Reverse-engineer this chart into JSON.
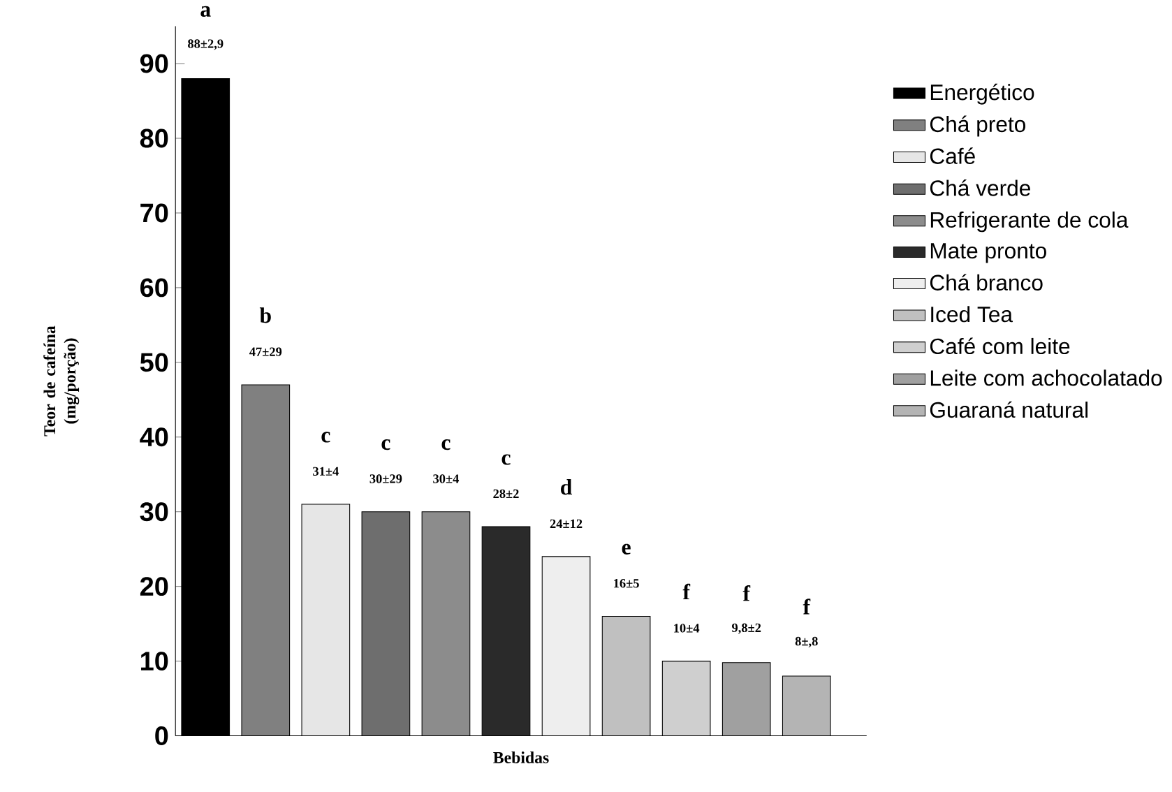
{
  "chart_data": {
    "type": "bar",
    "xlabel": "Bebidas",
    "ylabel": "Teor de cafeína (mg/porção)",
    "categories": [
      null,
      null,
      null,
      null,
      null,
      null,
      null,
      null,
      null,
      null,
      null
    ],
    "ylim": [
      0,
      95
    ],
    "yticks": [
      0,
      10,
      20,
      30,
      40,
      50,
      60,
      70,
      80,
      90
    ],
    "legend": "right",
    "series": [
      {
        "name": "Energético",
        "color": "#000000",
        "values": [
          88,
          null,
          null,
          null,
          null,
          null,
          null,
          null,
          null,
          null,
          null
        ],
        "value_labels": [
          "88±2,9",
          null,
          null,
          null,
          null,
          null,
          null,
          null,
          null,
          null,
          null
        ]
      },
      {
        "name": "Chá preto",
        "color": "#808080",
        "values": [
          null,
          47,
          null,
          null,
          null,
          null,
          null,
          null,
          null,
          null,
          null
        ],
        "value_labels": [
          null,
          "47±29",
          null,
          null,
          null,
          null,
          null,
          null,
          null,
          null,
          null
        ]
      },
      {
        "name": "Café",
        "color": "#e6e6e6",
        "values": [
          null,
          null,
          31,
          null,
          null,
          null,
          null,
          null,
          null,
          null,
          null
        ],
        "value_labels": [
          null,
          null,
          "31±4",
          null,
          null,
          null,
          null,
          null,
          null,
          null,
          null
        ]
      },
      {
        "name": "Chá verde",
        "color": "#6e6e6e",
        "values": [
          null,
          null,
          null,
          30,
          null,
          null,
          null,
          null,
          null,
          null,
          null
        ],
        "value_labels": [
          null,
          null,
          null,
          "30±29",
          null,
          null,
          null,
          null,
          null,
          null,
          null
        ]
      },
      {
        "name": "Refrigerante de cola",
        "color": "#8c8c8c",
        "values": [
          null,
          null,
          null,
          null,
          30,
          null,
          null,
          null,
          null,
          null,
          null
        ],
        "value_labels": [
          null,
          null,
          null,
          null,
          "30±4",
          null,
          null,
          null,
          null,
          null,
          null
        ]
      },
      {
        "name": "Mate pronto",
        "color": "#2a2a2a",
        "values": [
          null,
          null,
          null,
          null,
          null,
          28,
          null,
          null,
          null,
          null,
          null
        ],
        "value_labels": [
          null,
          null,
          null,
          null,
          null,
          "28±2",
          null,
          null,
          null,
          null,
          null
        ]
      },
      {
        "name": "Chá branco",
        "color": "#eeeeee",
        "values": [
          null,
          null,
          null,
          null,
          null,
          null,
          24,
          null,
          null,
          null,
          null
        ],
        "value_labels": [
          null,
          null,
          null,
          null,
          null,
          null,
          "24±12",
          null,
          null,
          null,
          null
        ]
      },
      {
        "name": "Iced Tea",
        "color": "#c0c0c0",
        "values": [
          null,
          null,
          null,
          null,
          null,
          null,
          null,
          16,
          null,
          null,
          null
        ],
        "value_labels": [
          null,
          null,
          null,
          null,
          null,
          null,
          null,
          "16±5",
          null,
          null,
          null
        ]
      },
      {
        "name": "Café com leite",
        "color": "#cfcfcf",
        "values": [
          null,
          null,
          null,
          null,
          null,
          null,
          null,
          null,
          10,
          null,
          null
        ],
        "value_labels": [
          null,
          null,
          null,
          null,
          null,
          null,
          null,
          null,
          "10±4",
          null,
          null
        ]
      },
      {
        "name": "Leite com achocolatado",
        "color": "#a0a0a0",
        "values": [
          null,
          null,
          null,
          null,
          null,
          null,
          null,
          null,
          null,
          9.8,
          null
        ],
        "value_labels": [
          null,
          null,
          null,
          null,
          null,
          null,
          null,
          null,
          null,
          "9,8±2",
          null
        ]
      },
      {
        "name": "Guaraná natural",
        "color": "#b4b4b4",
        "values": [
          null,
          null,
          null,
          null,
          null,
          null,
          null,
          null,
          null,
          null,
          8
        ],
        "value_labels": [
          null,
          null,
          null,
          null,
          null,
          null,
          null,
          null,
          null,
          null,
          "8±,8"
        ]
      }
    ],
    "annotations": [
      "a",
      "b",
      "c",
      "c",
      "c",
      "c",
      "d",
      "e",
      "f",
      "f",
      "f"
    ]
  }
}
